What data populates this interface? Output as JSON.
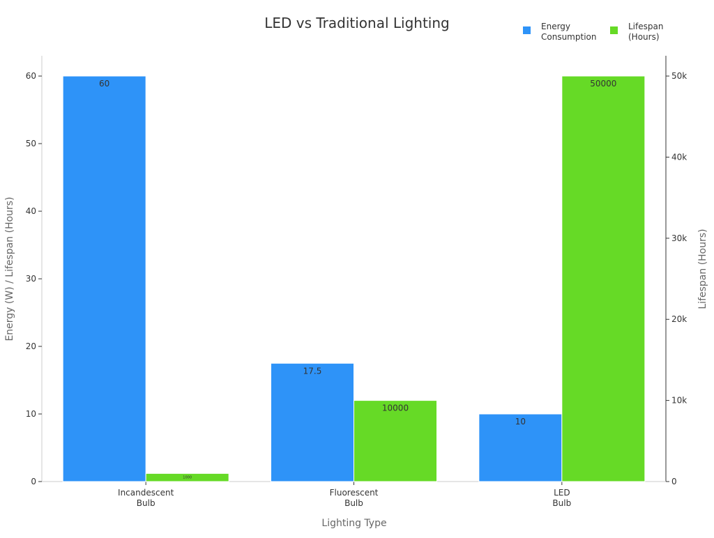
{
  "chart_data": {
    "type": "bar",
    "title": "LED vs Traditional Lighting",
    "xlabel": "Lighting Type",
    "ylabel": "Energy (W) / Lifespan (Hours)",
    "y2label": "Lifespan (Hours)",
    "categories": [
      [
        "Incandescent",
        "Bulb"
      ],
      [
        "Fluorescent",
        "Bulb"
      ],
      [
        "LED",
        "Bulb"
      ]
    ],
    "ylim": [
      0,
      63
    ],
    "y2lim": [
      0,
      52500
    ],
    "yticks": [
      0,
      10,
      20,
      30,
      40,
      50,
      60
    ],
    "y2ticks": [
      0,
      10000,
      20000,
      30000,
      40000,
      50000
    ],
    "y2ticklabels": [
      "0",
      "10k",
      "20k",
      "30k",
      "40k",
      "50k"
    ],
    "legend_position": "top-right",
    "grid": false,
    "series": [
      {
        "name": "Energy Consumption",
        "legend_lines": [
          "Energy",
          "Consumption"
        ],
        "axis": "left",
        "color": "#2E93F8",
        "values": [
          60,
          17.5,
          10
        ],
        "labels": [
          "60",
          "17.5",
          "10"
        ]
      },
      {
        "name": "Lifespan (Hours)",
        "legend_lines": [
          "Lifespan",
          "(Hours)"
        ],
        "axis": "right",
        "color": "#66DA26",
        "values": [
          1000,
          10000,
          50000
        ],
        "labels": [
          "1000",
          "10000",
          "50000"
        ]
      }
    ]
  }
}
